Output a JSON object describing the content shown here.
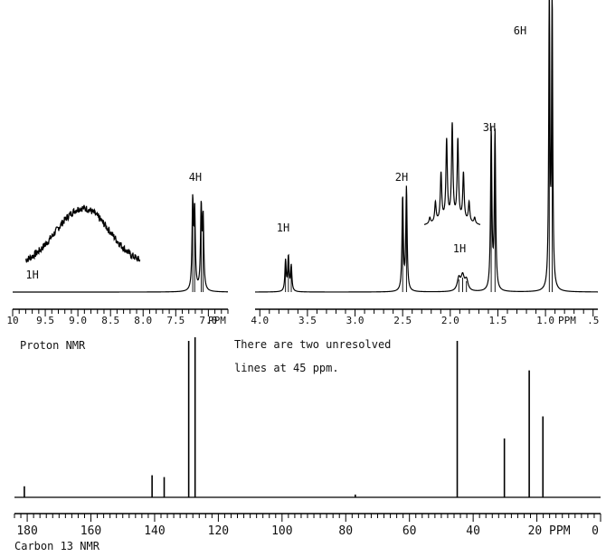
{
  "chart_data": [
    {
      "type": "line",
      "title": "Proton NMR",
      "panel": "proton-left",
      "xunit": "PPM",
      "xlim": [
        10.0,
        6.7
      ],
      "ticks": [
        {
          "v": 10.0,
          "label": "10"
        },
        {
          "v": 9.5,
          "label": "9.5"
        },
        {
          "v": 9.0,
          "label": "9.0"
        },
        {
          "v": 8.5,
          "label": "8.5"
        },
        {
          "v": 8.0,
          "label": "8.0"
        },
        {
          "v": 7.5,
          "label": "7.5"
        },
        {
          "v": 7.0,
          "label": "7.0"
        }
      ],
      "peaks": [
        {
          "ppm": 7.24,
          "height": 0.62,
          "width": 0.012
        },
        {
          "ppm": 7.21,
          "height": 0.55,
          "width": 0.012
        },
        {
          "ppm": 7.11,
          "height": 0.58,
          "width": 0.012
        },
        {
          "ppm": 7.08,
          "height": 0.5,
          "width": 0.012
        }
      ],
      "integrations": [
        {
          "ppm": 7.2,
          "label": "4H"
        },
        {
          "ppm": 9.7,
          "label": "1H"
        }
      ],
      "inset": {
        "center": 8.95,
        "ppm_range": [
          9.8,
          8.05
        ],
        "height": 0.42,
        "label": "1H"
      }
    },
    {
      "type": "line",
      "panel": "proton-right",
      "xunit": "PPM",
      "xlim": [
        4.05,
        0.45
      ],
      "ticks": [
        {
          "v": 4.0,
          "label": "4.0"
        },
        {
          "v": 3.5,
          "label": "3.5"
        },
        {
          "v": 3.0,
          "label": "3.0"
        },
        {
          "v": 2.5,
          "label": "2.5"
        },
        {
          "v": 2.0,
          "label": "2.0"
        },
        {
          "v": 1.5,
          "label": "1.5"
        },
        {
          "v": 1.0,
          "label": "1.0"
        },
        {
          "v": 0.5,
          "label": ".5"
        }
      ],
      "peaks": [
        {
          "ppm": 3.73,
          "height": 0.17,
          "width": 0.008
        },
        {
          "ppm": 3.7,
          "height": 0.19,
          "width": 0.008
        },
        {
          "ppm": 3.67,
          "height": 0.14,
          "width": 0.008
        },
        {
          "ppm": 2.5,
          "height": 0.52,
          "width": 0.008
        },
        {
          "ppm": 2.46,
          "height": 0.57,
          "width": 0.008
        },
        {
          "ppm": 1.91,
          "height": 0.07,
          "width": 0.02
        },
        {
          "ppm": 1.87,
          "height": 0.08,
          "width": 0.02
        },
        {
          "ppm": 1.83,
          "height": 0.06,
          "width": 0.02
        },
        {
          "ppm": 1.57,
          "height": 0.89,
          "width": 0.008
        },
        {
          "ppm": 1.53,
          "height": 0.87,
          "width": 0.008
        },
        {
          "ppm": 0.96,
          "height": 1.62,
          "width": 0.007
        },
        {
          "ppm": 0.93,
          "height": 1.6,
          "width": 0.007
        }
      ],
      "integrations": [
        {
          "ppm": 3.7,
          "label": "1H"
        },
        {
          "ppm": 2.48,
          "label": "2H"
        },
        {
          "ppm": 1.87,
          "label": "1H"
        },
        {
          "ppm": 1.55,
          "label": "3H"
        },
        {
          "ppm": 0.95,
          "label": "6H"
        }
      ],
      "inset": {
        "center": 1.96,
        "ppm_range": [
          2.18,
          1.73
        ],
        "lines": 9,
        "height": 0.9
      }
    },
    {
      "type": "line",
      "title": "Carbon 13 NMR",
      "panel": "carbon",
      "xunit": "PPM",
      "xlim": [
        184,
        0
      ],
      "ticks": [
        {
          "v": 180,
          "label": "180"
        },
        {
          "v": 160,
          "label": "160"
        },
        {
          "v": 140,
          "label": "140"
        },
        {
          "v": 120,
          "label": "120"
        },
        {
          "v": 100,
          "label": "100"
        },
        {
          "v": 80,
          "label": "80"
        },
        {
          "v": 60,
          "label": "60"
        },
        {
          "v": 40,
          "label": "40"
        },
        {
          "v": 20,
          "label": "20 PPM"
        },
        {
          "v": 0,
          "label": "0"
        }
      ],
      "peaks": [
        {
          "ppm": 180.9,
          "height": 0.06
        },
        {
          "ppm": 140.8,
          "height": 0.12
        },
        {
          "ppm": 137.0,
          "height": 0.11
        },
        {
          "ppm": 129.3,
          "height": 0.85
        },
        {
          "ppm": 127.3,
          "height": 0.87
        },
        {
          "ppm": 77.0,
          "height": 0.015
        },
        {
          "ppm": 45.0,
          "height": 0.85
        },
        {
          "ppm": 30.2,
          "height": 0.32
        },
        {
          "ppm": 22.4,
          "height": 0.69
        },
        {
          "ppm": 18.1,
          "height": 0.44
        }
      ],
      "annotation": [
        "There are two unresolved",
        "lines at 45 ppm."
      ]
    }
  ],
  "labels": {
    "proton": "Proton NMR",
    "ppm_left": "PPM",
    "ppm_right": "PPM",
    "carbon": "Carbon 13 NMR",
    "note_line1": "There are two unresolved",
    "note_line2": "lines at 45 ppm."
  }
}
